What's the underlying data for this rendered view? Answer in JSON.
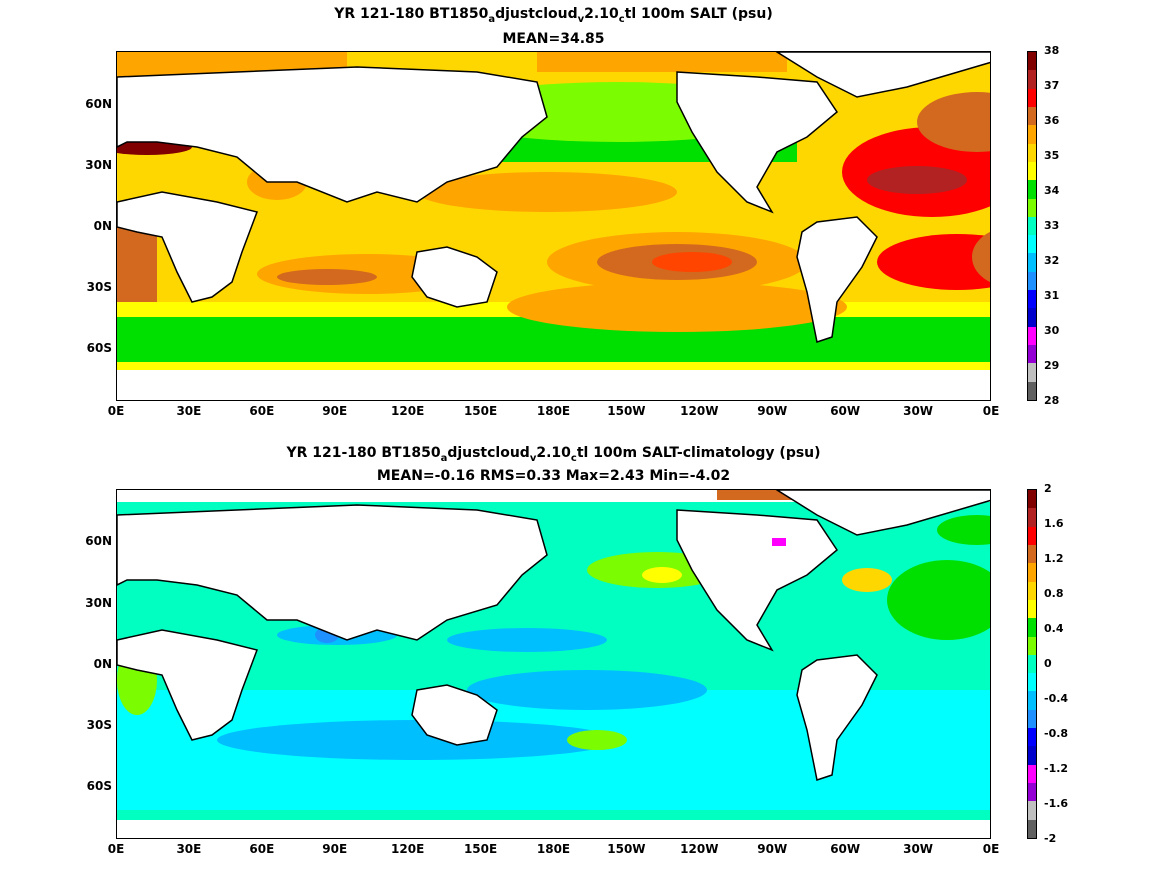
{
  "panels": [
    {
      "title_parts": [
        "YR 121-180 BT1850",
        "a",
        "djustcloud",
        "v",
        "2.10",
        "c",
        "tl 100m SALT (psu)"
      ],
      "subtitle": "MEAN=34.85",
      "colorbar": {
        "labels": [
          "38",
          "37",
          "36",
          "35",
          "34",
          "33",
          "32",
          "31",
          "30",
          "29",
          "28"
        ],
        "colors": [
          "#800000",
          "#b22222",
          "#ff0000",
          "#d2691e",
          "#ffa500",
          "#ffd700",
          "#ffff00",
          "#00e000",
          "#7cfc00",
          "#00ffc0",
          "#00ffff",
          "#00bfff",
          "#1e90ff",
          "#0000ff",
          "#0000cd",
          "#ff00ff",
          "#9400d3",
          "#c0c0c0",
          "#606060"
        ]
      }
    },
    {
      "title_parts": [
        "YR 121-180 BT1850",
        "a",
        "djustcloud",
        "v",
        "2.10",
        "c",
        "tl 100m SALT-climatology (psu)"
      ],
      "subtitle": "MEAN=-0.16   RMS=0.33   Max=2.43   Min=-4.02",
      "colorbar": {
        "labels": [
          "2",
          "1.6",
          "1.2",
          "0.8",
          "0.4",
          "0",
          "-0.4",
          "-0.8",
          "-1.2",
          "-1.6",
          "-2"
        ],
        "colors": [
          "#800000",
          "#b22222",
          "#ff0000",
          "#d2691e",
          "#ffa500",
          "#ffd700",
          "#ffff00",
          "#00e000",
          "#7cfc00",
          "#00ffc0",
          "#00ffff",
          "#00bfff",
          "#1e90ff",
          "#0000ff",
          "#0000cd",
          "#ff00ff",
          "#9400d3",
          "#c0c0c0",
          "#606060"
        ]
      }
    }
  ],
  "axes": {
    "xticks": [
      "0E",
      "30E",
      "60E",
      "90E",
      "120E",
      "150E",
      "180E",
      "150W",
      "120W",
      "90W",
      "60W",
      "30W",
      "0E"
    ],
    "yticks": [
      "60N",
      "30N",
      "0N",
      "30S",
      "60S"
    ]
  }
}
